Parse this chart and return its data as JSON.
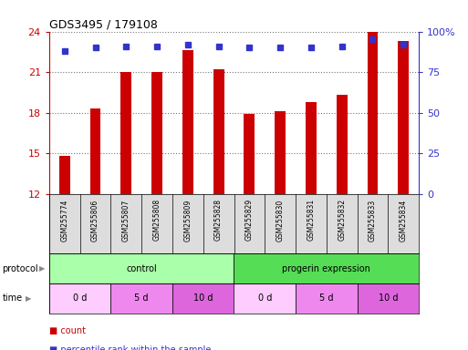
{
  "title": "GDS3495 / 179108",
  "samples": [
    "GSM255774",
    "GSM255806",
    "GSM255807",
    "GSM255808",
    "GSM255809",
    "GSM255828",
    "GSM255829",
    "GSM255830",
    "GSM255831",
    "GSM255832",
    "GSM255833",
    "GSM255834"
  ],
  "bar_values": [
    14.8,
    18.3,
    21.0,
    21.0,
    22.6,
    21.2,
    17.9,
    18.1,
    18.8,
    19.3,
    24.0,
    23.3
  ],
  "percentile_values": [
    88,
    90,
    91,
    91,
    92,
    91,
    90,
    90,
    90,
    91,
    95,
    92
  ],
  "bar_color": "#cc0000",
  "percentile_color": "#3333cc",
  "ylim_left": [
    12,
    24
  ],
  "yticks_left": [
    12,
    15,
    18,
    21,
    24
  ],
  "ylim_right": [
    0,
    100
  ],
  "yticks_right": [
    0,
    25,
    50,
    75,
    100
  ],
  "ytick_right_labels": [
    "0",
    "25",
    "50",
    "75",
    "100%"
  ],
  "protocol_groups": [
    {
      "label": "control",
      "start": 0,
      "end": 6,
      "color": "#aaffaa"
    },
    {
      "label": "progerin expression",
      "start": 6,
      "end": 12,
      "color": "#55dd55"
    }
  ],
  "time_groups": [
    {
      "label": "0 d",
      "start": 0,
      "end": 2,
      "color": "#ffccff"
    },
    {
      "label": "5 d",
      "start": 2,
      "end": 4,
      "color": "#ee88ee"
    },
    {
      "label": "10 d",
      "start": 4,
      "end": 6,
      "color": "#dd66dd"
    },
    {
      "label": "0 d",
      "start": 6,
      "end": 8,
      "color": "#ffccff"
    },
    {
      "label": "5 d",
      "start": 8,
      "end": 10,
      "color": "#ee88ee"
    },
    {
      "label": "10 d",
      "start": 10,
      "end": 12,
      "color": "#dd66dd"
    }
  ],
  "legend_items": [
    {
      "label": "count",
      "color": "#cc0000"
    },
    {
      "label": "percentile rank within the sample",
      "color": "#3333cc"
    }
  ],
  "background_color": "#ffffff",
  "grid_color": "#777777",
  "label_area_bg": "#dddddd",
  "bar_width": 0.35
}
